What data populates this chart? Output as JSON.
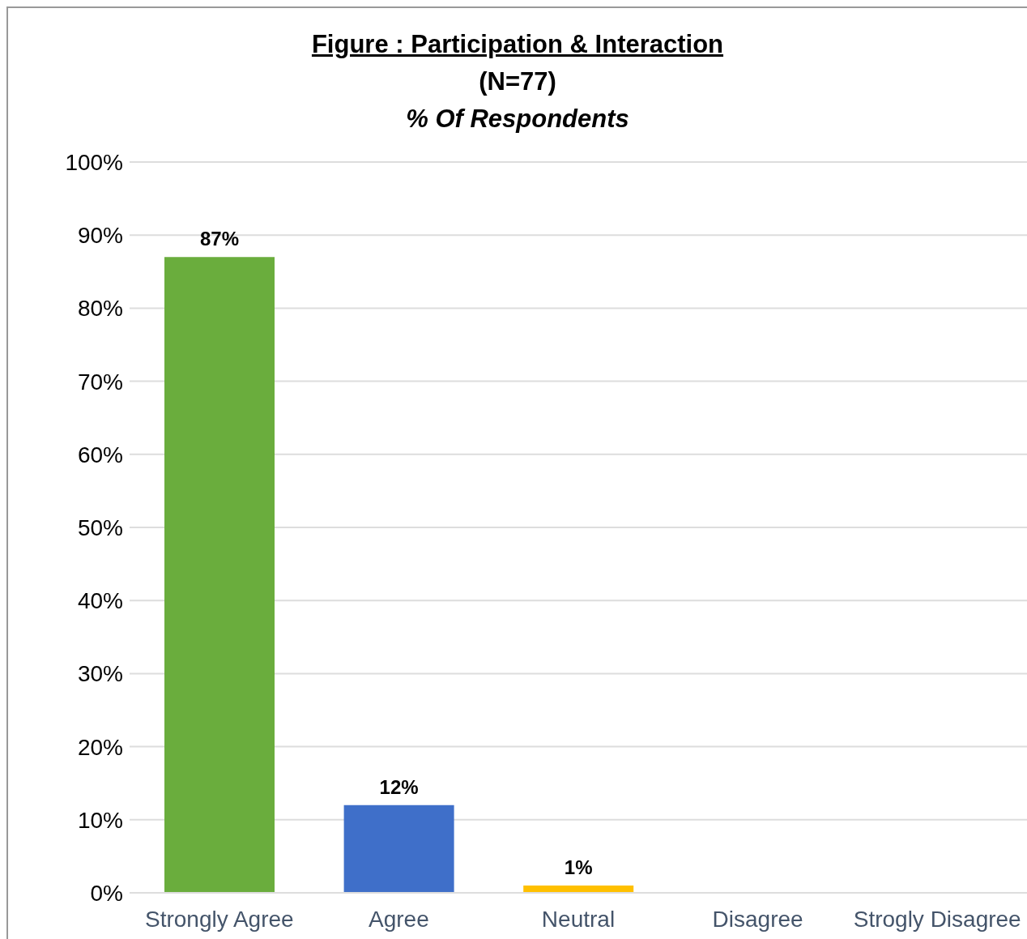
{
  "chart_data": {
    "type": "bar",
    "title": "Figure  : Participation & Interaction",
    "subtitle": "(N=77)",
    "ylabel": "% Of Respondents",
    "categories": [
      "Strongly Agree",
      "Agree",
      "Neutral",
      "Disagree",
      "Strogly Disagree"
    ],
    "values": [
      87,
      12,
      1,
      0,
      0
    ],
    "colors": [
      "#6aad3d",
      "#3f6fc9",
      "#ffc000",
      null,
      null
    ],
    "value_labels": [
      "87%",
      "12%",
      "1%",
      null,
      null
    ],
    "ylim": [
      0,
      100
    ],
    "yticks": [
      {
        "value": 0,
        "label": "0%"
      },
      {
        "value": 10,
        "label": "10%"
      },
      {
        "value": 20,
        "label": "20%"
      },
      {
        "value": 30,
        "label": "30%"
      },
      {
        "value": 40,
        "label": "40%"
      },
      {
        "value": 50,
        "label": "50%"
      },
      {
        "value": 60,
        "label": "60%"
      },
      {
        "value": 70,
        "label": "70%"
      },
      {
        "value": 80,
        "label": "80%"
      },
      {
        "value": 90,
        "label": "90%"
      },
      {
        "value": 100,
        "label": "100%"
      }
    ],
    "grid": "y",
    "legend": false
  }
}
